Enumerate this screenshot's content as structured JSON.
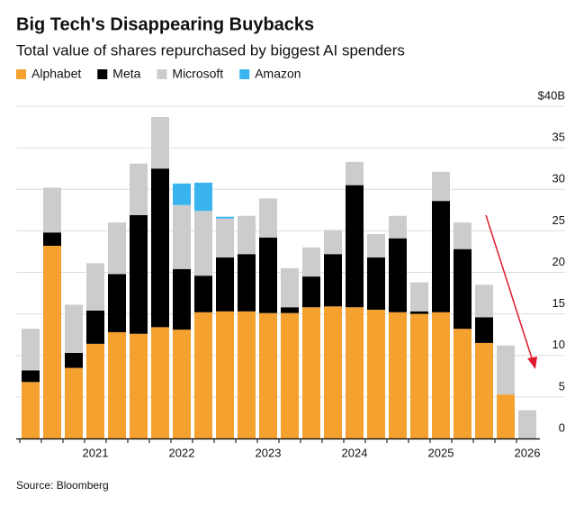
{
  "chart_data": {
    "type": "stacked-bar",
    "title": "Big Tech's Disappearing Buybacks",
    "subtitle": "Total value of shares repurchased by biggest AI spenders",
    "source": "Source: Bloomberg",
    "categories": [
      null,
      null,
      null,
      "2021",
      null,
      null,
      null,
      "2022",
      null,
      null,
      null,
      "2023",
      null,
      null,
      null,
      "2024",
      null,
      null,
      null,
      "2025",
      null,
      null,
      null,
      "2026"
    ],
    "series": [
      {
        "name": "Alphabet",
        "color": "#f5a12f",
        "values": [
          6.8,
          23.2,
          8.5,
          11.4,
          12.8,
          12.6,
          13.4,
          13.1,
          15.2,
          15.3,
          15.3,
          15.1,
          15.1,
          15.8,
          15.9,
          15.8,
          15.5,
          15.2,
          15.0,
          15.2,
          13.2,
          11.5,
          5.3,
          0
        ]
      },
      {
        "name": "Meta",
        "color": "#000000",
        "values": [
          1.4,
          1.6,
          1.8,
          4.0,
          7.0,
          14.3,
          19.1,
          7.3,
          4.4,
          6.5,
          6.9,
          9.1,
          0.7,
          3.7,
          6.3,
          14.7,
          6.3,
          8.9,
          0.3,
          13.4,
          9.6,
          3.1,
          0,
          0
        ]
      },
      {
        "name": "Microsoft",
        "color": "#cccccc",
        "values": [
          5.0,
          5.4,
          5.8,
          5.7,
          6.2,
          6.2,
          6.2,
          7.7,
          7.8,
          4.7,
          4.6,
          4.7,
          4.7,
          3.5,
          2.9,
          2.8,
          2.8,
          2.7,
          3.5,
          3.5,
          3.2,
          3.9,
          5.9,
          3.4
        ]
      },
      {
        "name": "Amazon",
        "color": "#3ab4ef",
        "values": [
          0,
          0,
          0,
          0,
          0,
          0,
          0,
          2.6,
          3.4,
          0.2,
          0,
          0,
          0,
          0,
          0,
          0,
          0,
          0,
          0,
          0,
          0,
          0,
          0,
          0
        ]
      }
    ],
    "ylim": [
      0,
      40
    ],
    "yticks": [
      0,
      5,
      10,
      15,
      20,
      25,
      30,
      35,
      {
        "value": 40,
        "label": "$40B"
      }
    ],
    "grid": true
  }
}
